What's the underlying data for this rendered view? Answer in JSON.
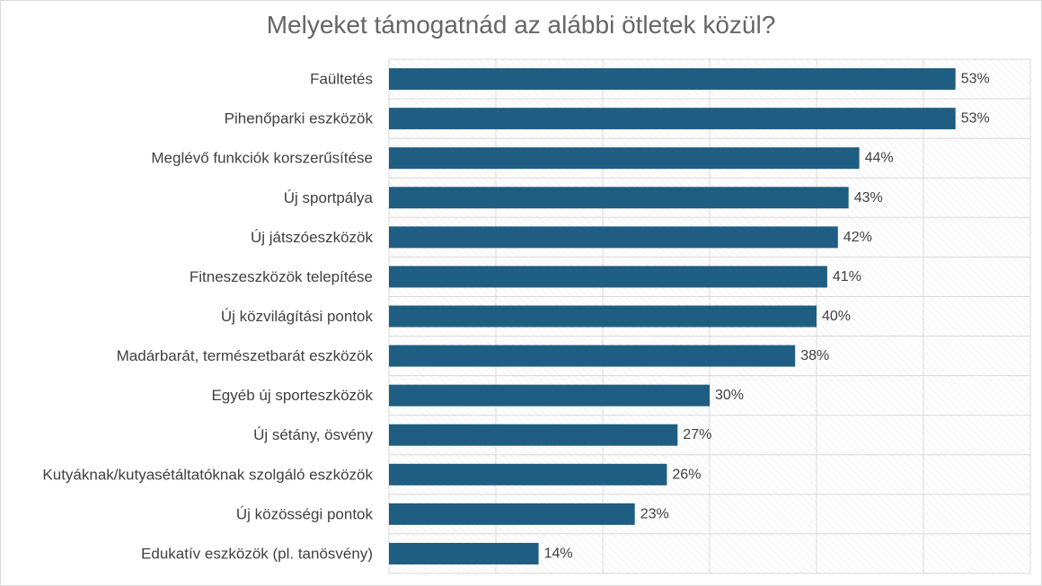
{
  "chart_data": {
    "type": "bar",
    "orientation": "horizontal",
    "title": "Melyeket támogatnád az alábbi ötletek közül?",
    "categories": [
      "Faültetés",
      "Pihenőparki eszközök",
      "Meglévő funkciók korszerűsítése",
      "Új sportpálya",
      "Új játszóeszközök",
      "Fitneszeszközök telepítése",
      "Új közvilágítási pontok",
      "Madárbarát, természetbarát eszközök",
      "Egyéb új sporteszközök",
      "Új sétány, ösvény",
      "Kutyáknak/kutyasétáltatóknak szolgáló eszközök",
      "Új közösségi pontok",
      "Edukatív eszközök (pl. tanösvény)"
    ],
    "values": [
      53,
      53,
      44,
      43,
      42,
      41,
      40,
      38,
      30,
      27,
      26,
      23,
      14
    ],
    "value_labels": [
      "53%",
      "53%",
      "44%",
      "43%",
      "42%",
      "41%",
      "40%",
      "38%",
      "30%",
      "27%",
      "26%",
      "23%",
      "14%"
    ],
    "xlim": [
      0,
      60
    ],
    "grid": true,
    "colors": {
      "bar": "#1f5e82",
      "grid": "#d9d9d9",
      "text": "#404040",
      "title": "#666666"
    }
  }
}
